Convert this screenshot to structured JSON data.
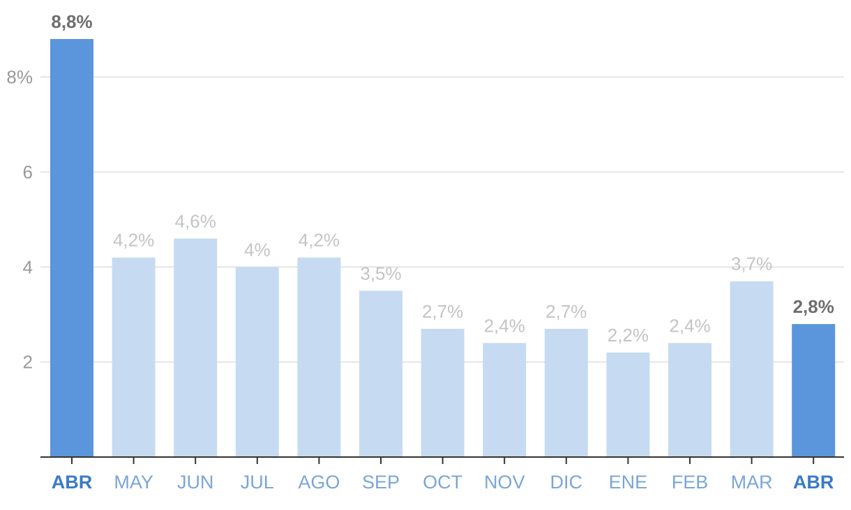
{
  "chart_data": {
    "type": "bar",
    "categories": [
      "ABR",
      "MAY",
      "JUN",
      "JUL",
      "AGO",
      "SEP",
      "OCT",
      "NOV",
      "DIC",
      "ENE",
      "FEB",
      "MAR",
      "ABR"
    ],
    "values": [
      8.8,
      4.2,
      4.6,
      4.0,
      4.2,
      3.5,
      2.7,
      2.4,
      2.7,
      2.2,
      2.4,
      3.7,
      2.8
    ],
    "data_labels": [
      "8,8%",
      "4,2%",
      "4,6%",
      "4%",
      "4,2%",
      "3,5%",
      "2,7%",
      "2,4%",
      "2,7%",
      "2,2%",
      "2,4%",
      "3,7%",
      "2,8%"
    ],
    "highlighted": [
      0,
      12
    ],
    "yticks": [
      2,
      4,
      6,
      8
    ],
    "ytick_labels": [
      "2",
      "4",
      "6",
      "8%"
    ],
    "ylim": [
      0,
      8.8
    ],
    "grid": true,
    "title": "",
    "xlabel": "",
    "ylabel": "",
    "colors": {
      "highlight_bar": "#5b95db",
      "normal_bar": "#c6dbf1",
      "highlight_label": "#6f6f6f",
      "normal_label": "#c4c4c4",
      "highlight_tick": "#3a7bc8",
      "normal_tick": "#7aa6d6",
      "grid": "#dddddd",
      "axis": "#333333"
    }
  }
}
